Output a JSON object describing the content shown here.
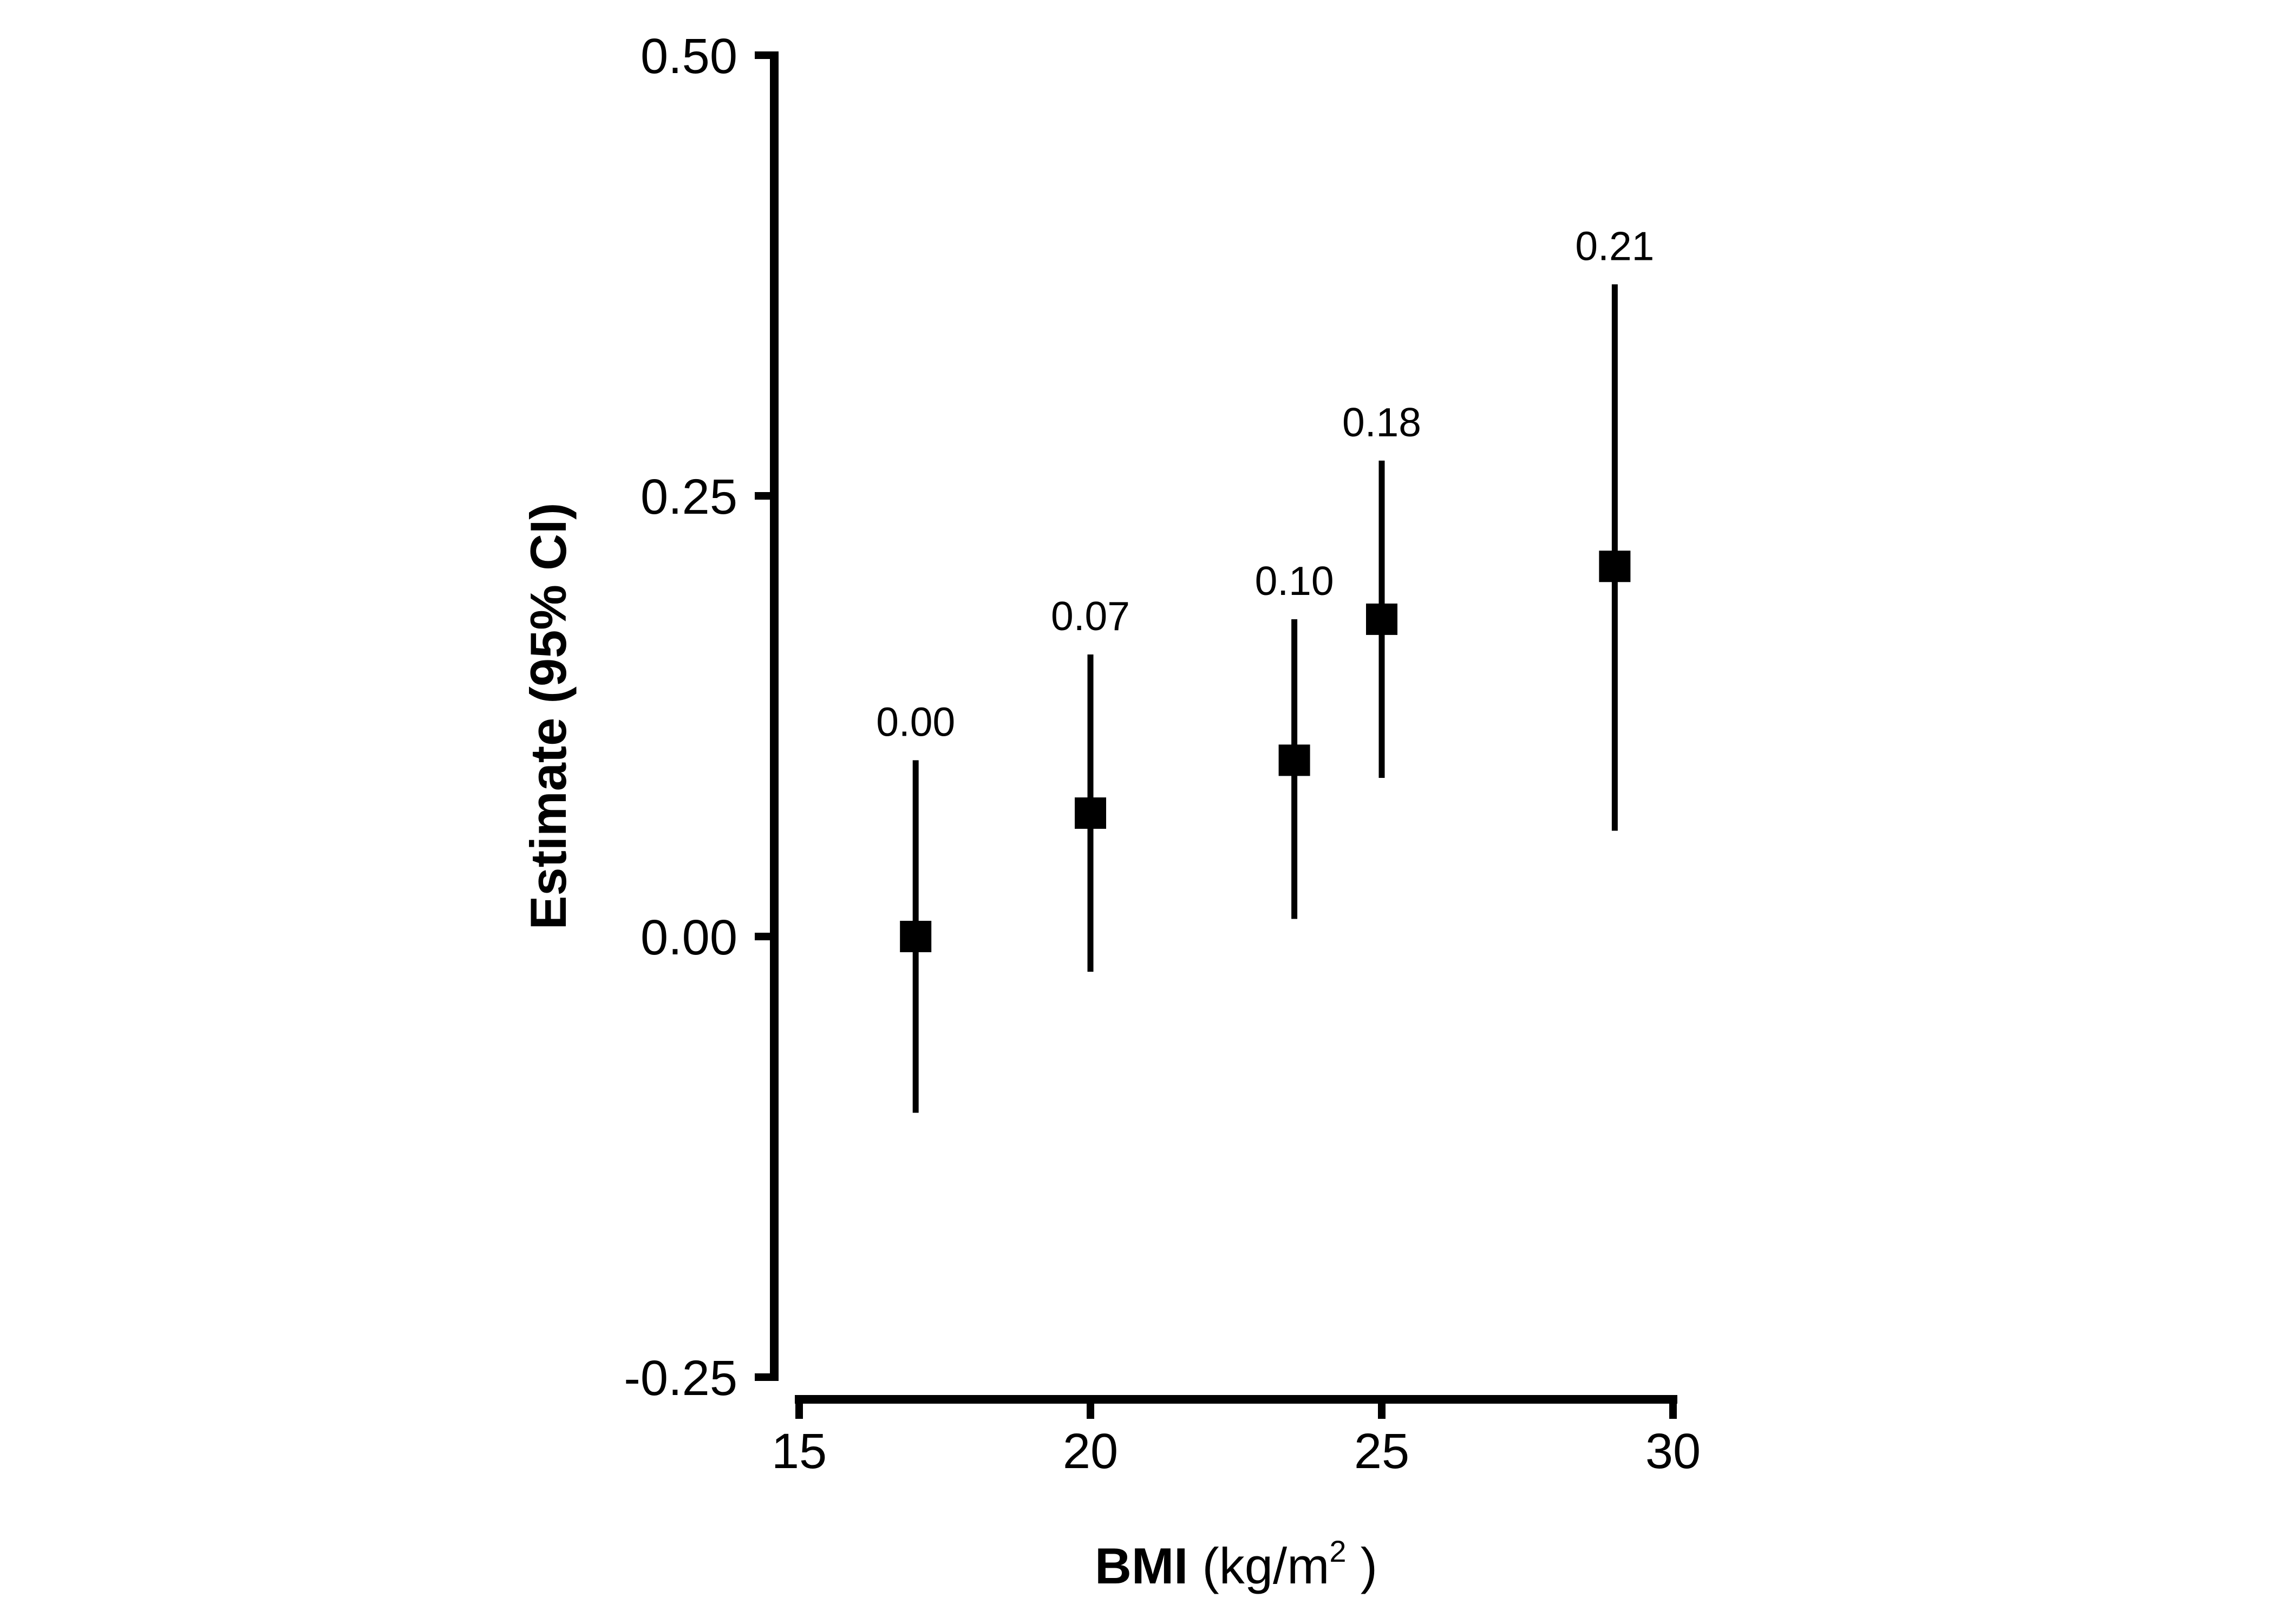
{
  "figure": {
    "background_color": "#ffffff",
    "ink_color": "#000000"
  },
  "chart_data": {
    "type": "scatter",
    "subtype": "point-estimates-with-95ci-error-bars",
    "title": "",
    "ylabel": "Estimate (95% CI)",
    "xlabel": {
      "bold_part": "BMI",
      "unit_pre": " (kg/m",
      "unit_sup": "2",
      "unit_post": " )",
      "plain_text": "BMI (kg/m2)"
    },
    "xlim": [
      15,
      30
    ],
    "ylim": [
      -0.25,
      0.5
    ],
    "grid": false,
    "legend": null,
    "marker_shape": "filled-square",
    "marker_color": "#000000",
    "x_ticks": [
      {
        "value": 15,
        "label": "15"
      },
      {
        "value": 20,
        "label": "20"
      },
      {
        "value": 25,
        "label": "25"
      },
      {
        "value": 30,
        "label": "30"
      }
    ],
    "y_ticks": [
      {
        "value": 0.5,
        "label": "0.50"
      },
      {
        "value": 0.25,
        "label": "0.25"
      },
      {
        "value": 0.0,
        "label": "0.00"
      },
      {
        "value": -0.25,
        "label": "-0.25"
      }
    ],
    "points": [
      {
        "x_bmi": 17,
        "estimate": 0.0,
        "ci_low": -0.1,
        "ci_high": 0.1,
        "label": "0.00"
      },
      {
        "x_bmi": 20,
        "estimate": 0.07,
        "ci_low": -0.02,
        "ci_high": 0.16,
        "label": "0.07"
      },
      {
        "x_bmi": 23.5,
        "estimate": 0.1,
        "ci_low": 0.01,
        "ci_high": 0.18,
        "label": "0.10"
      },
      {
        "x_bmi": 25,
        "estimate": 0.18,
        "ci_low": 0.09,
        "ci_high": 0.27,
        "label": "0.18"
      },
      {
        "x_bmi": 29,
        "estimate": 0.21,
        "ci_low": 0.06,
        "ci_high": 0.37,
        "label": "0.21"
      }
    ]
  }
}
